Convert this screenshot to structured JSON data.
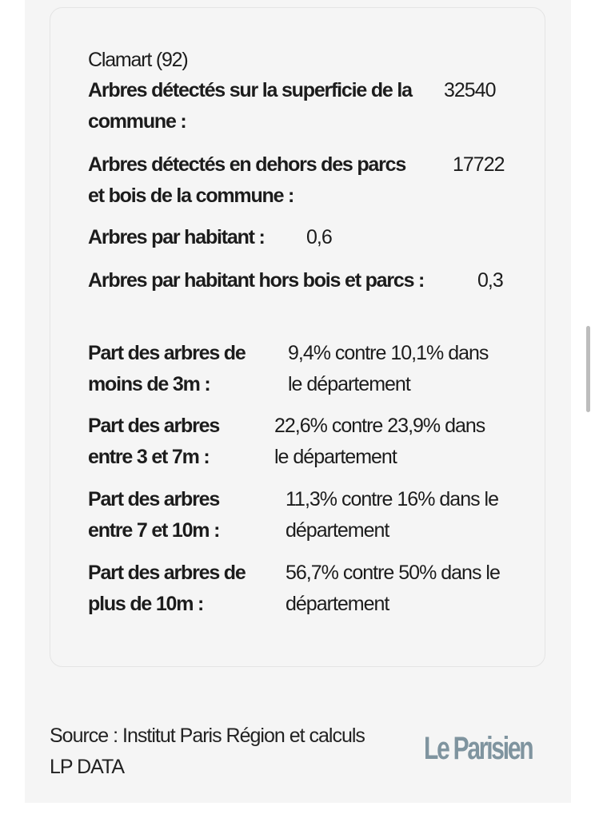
{
  "commune": "Clamart (92)",
  "rows": [
    {
      "label": "Arbres détectés sur la superficie de la commune :",
      "value": "32540"
    },
    {
      "label": "Arbres détectés en dehors des parcs et bois de la commune :",
      "value": "17722"
    },
    {
      "label": "Arbres par habitant :",
      "value": "0,6"
    },
    {
      "label": "Arbres par habitant hors bois et parcs :",
      "value": "0,3"
    },
    {
      "label": "Part des arbres de moins de 3m :",
      "value": "9,4% contre 10,1% dans le département"
    },
    {
      "label": "Part des arbres entre 3 et 7m :",
      "value": "22,6% contre 23,9% dans le département"
    },
    {
      "label": "Part des arbres entre 7 et 10m :",
      "value": "11,3% contre 16% dans le département"
    },
    {
      "label": "Part des arbres de plus de 10m :",
      "value": "56,7% contre 50% dans le département"
    }
  ],
  "footer": {
    "source": "Source : Institut Paris Région et calculs LP DATA",
    "logo": "Le Parisien",
    "logo_color": "#7f949f"
  }
}
